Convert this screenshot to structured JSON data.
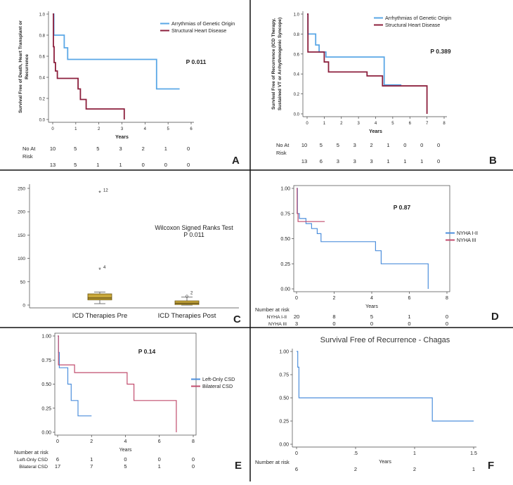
{
  "chart_data": [
    {
      "panel": "A",
      "type": "line",
      "step": true,
      "title": "",
      "xlabel": "Years",
      "ylabel_lines": [
        "Survival Free of Death, Heart Transplant or",
        "Recurrence"
      ],
      "xlim": [
        0,
        6
      ],
      "ylim": [
        0,
        1
      ],
      "xticks": [
        "0",
        "1",
        "2",
        "3",
        "4",
        "5",
        "6"
      ],
      "yticks": [
        "0.0",
        "0.2",
        "0.4",
        "0.6",
        "0.8",
        "1.0"
      ],
      "pvalue": "P 0.011",
      "legend": [
        "Arrythmias of Genetic Origin",
        "Structural Heart Disease"
      ],
      "colors": [
        "#5aa7e6",
        "#8c1f3c"
      ],
      "series": [
        {
          "name": "Arrythmias of Genetic Origin",
          "x": [
            0,
            0.05,
            0.05,
            0.5,
            0.5,
            0.65,
            0.65,
            4.5,
            4.5,
            5.5
          ],
          "y": [
            1,
            1,
            0.8,
            0.8,
            0.68,
            0.68,
            0.57,
            0.57,
            0.29,
            0.29
          ]
        },
        {
          "name": "Structural Heart Disease",
          "x": [
            0,
            0.03,
            0.03,
            0.06,
            0.06,
            0.12,
            0.12,
            0.2,
            0.2,
            0.4,
            0.4,
            1.1,
            1.1,
            1.2,
            1.2,
            1.45,
            1.45,
            3.1,
            3.1
          ],
          "y": [
            1,
            1,
            0.69,
            0.69,
            0.54,
            0.54,
            0.46,
            0.46,
            0.39,
            0.39,
            0.39,
            0.39,
            0.29,
            0.29,
            0.19,
            0.19,
            0.1,
            0.1,
            0.0
          ]
        }
      ],
      "risk_label": [
        "No At",
        "Risk"
      ],
      "risk_rows": [
        {
          "label": "",
          "values": [
            "10",
            "5",
            "5",
            "3",
            "2",
            "1",
            "0"
          ]
        },
        {
          "label": "",
          "values": [
            "13",
            "5",
            "1",
            "1",
            "0",
            "0",
            "0"
          ]
        }
      ]
    },
    {
      "panel": "B",
      "type": "line",
      "step": true,
      "title": "",
      "xlabel": "Years",
      "ylabel_lines": [
        "Survival Free of Recurrence (ICD Therapy,",
        "Sustained VT or Arrhythmogenic Syncope)"
      ],
      "xlim": [
        0,
        8
      ],
      "ylim": [
        0,
        1
      ],
      "xticks": [
        "0",
        "1",
        "2",
        "3",
        "4",
        "5",
        "6",
        "7",
        "8"
      ],
      "yticks": [
        "0.0",
        "0.2",
        "0.4",
        "0.6",
        "0.8",
        "1.0"
      ],
      "pvalue": "P 0.389",
      "legend": [
        "Arrhythmias of Genetic Origin",
        "Structural Heart Disease"
      ],
      "colors": [
        "#5aa7e6",
        "#8c1f3c"
      ],
      "series": [
        {
          "name": "Arrhythmias of Genetic Origin",
          "x": [
            0,
            0.05,
            0.05,
            0.5,
            0.5,
            0.7,
            0.7,
            1.1,
            1.1,
            4.5,
            4.5,
            5.5
          ],
          "y": [
            1,
            1,
            0.8,
            0.8,
            0.69,
            0.69,
            0.62,
            0.62,
            0.57,
            0.57,
            0.29,
            0.29
          ]
        },
        {
          "name": "Structural Heart Disease",
          "x": [
            0,
            0.05,
            0.05,
            1.0,
            1.0,
            1.25,
            1.25,
            3.5,
            3.5,
            4.4,
            4.4,
            7.0,
            7.0
          ],
          "y": [
            1,
            1,
            0.62,
            0.62,
            0.52,
            0.52,
            0.42,
            0.42,
            0.38,
            0.38,
            0.28,
            0.28,
            0.0
          ]
        }
      ],
      "risk_label": [
        "No At",
        "Risk"
      ],
      "risk_rows": [
        {
          "label": "",
          "values": [
            "10",
            "5",
            "5",
            "3",
            "2",
            "1",
            "0",
            "0",
            "0"
          ]
        },
        {
          "label": "",
          "values": [
            "13",
            "6",
            "3",
            "3",
            "3",
            "1",
            "1",
            "1",
            "0"
          ]
        }
      ]
    },
    {
      "panel": "C",
      "type": "box",
      "title": "Wilcoxon Signed Ranks Test",
      "pvalue": "P 0.011",
      "ylim": [
        0,
        260
      ],
      "yticks": [
        "0",
        "50",
        "100",
        "150",
        "200",
        "250"
      ],
      "categories": [
        "ICD Therapies Pre",
        "ICD Therapies Post"
      ],
      "boxes": [
        {
          "whisker_low": 3,
          "q1": 11,
          "median": 15,
          "q3": 24,
          "whisker_high": 28
        },
        {
          "whisker_low": 0,
          "q1": 1,
          "median": 4,
          "q3": 9,
          "whisker_high": 17
        }
      ],
      "outliers": [
        {
          "box": 0,
          "value": 240,
          "label": "12",
          "marker": "*"
        },
        {
          "box": 0,
          "value": 75,
          "label": "4",
          "marker": "*"
        },
        {
          "box": 1,
          "value": 20,
          "label": "2",
          "marker": "o"
        }
      ]
    },
    {
      "panel": "D",
      "type": "line",
      "step": true,
      "title": "",
      "xlabel": "Years",
      "xlim": [
        0,
        8
      ],
      "ylim": [
        0,
        1
      ],
      "xticks": [
        "0",
        "2",
        "4",
        "6",
        "8"
      ],
      "yticks": [
        "0.00",
        "0.25",
        "0.50",
        "0.75",
        "1.00"
      ],
      "pvalue": "P 0.87",
      "legend": [
        "NYHA I-II",
        "NYHA III"
      ],
      "colors": [
        "#4d8fdc",
        "#c24d6e"
      ],
      "series": [
        {
          "name": "NYHA I-II",
          "x": [
            0,
            0.05,
            0.05,
            0.15,
            0.15,
            0.5,
            0.5,
            0.8,
            0.8,
            1.1,
            1.1,
            1.3,
            1.3,
            4.2,
            4.2,
            4.5,
            4.5,
            7.0,
            7.0
          ],
          "y": [
            1,
            1,
            0.75,
            0.75,
            0.7,
            0.7,
            0.65,
            0.65,
            0.6,
            0.6,
            0.55,
            0.55,
            0.47,
            0.47,
            0.38,
            0.38,
            0.25,
            0.25,
            0.0
          ]
        },
        {
          "name": "NYHA III",
          "x": [
            0,
            0.03,
            0.03,
            0.08,
            0.08,
            1.5
          ],
          "y": [
            1,
            1,
            0.75,
            0.75,
            0.67,
            0.67
          ]
        }
      ],
      "risk_title": "Number at risk",
      "risk_rows": [
        {
          "label": "NYHA I-II",
          "values": [
            "20",
            "8",
            "5",
            "1",
            "0"
          ]
        },
        {
          "label": "NYHA III",
          "values": [
            "3",
            "0",
            "0",
            "0",
            "0"
          ]
        }
      ]
    },
    {
      "panel": "E",
      "type": "line",
      "step": true,
      "title": "",
      "xlabel": "Years",
      "xlim": [
        0,
        8
      ],
      "ylim": [
        0,
        1
      ],
      "xticks": [
        "0",
        "2",
        "4",
        "6",
        "8"
      ],
      "yticks": [
        "0.00",
        "0.25",
        "0.50",
        "0.75",
        "1.00"
      ],
      "pvalue": "P 0.14",
      "legend": [
        "Left-Only CSD",
        "Bilateral CSD"
      ],
      "colors": [
        "#4d8fdc",
        "#c24d6e"
      ],
      "series": [
        {
          "name": "Left-Only CSD",
          "x": [
            0,
            0.05,
            0.05,
            0.1,
            0.1,
            0.6,
            0.6,
            0.8,
            0.8,
            1.2,
            1.2,
            2.0
          ],
          "y": [
            1,
            1,
            0.83,
            0.83,
            0.67,
            0.67,
            0.5,
            0.5,
            0.33,
            0.33,
            0.17,
            0.17
          ]
        },
        {
          "name": "Bilateral CSD",
          "x": [
            0,
            0.05,
            0.05,
            1.0,
            1.0,
            4.1,
            4.1,
            4.5,
            4.5,
            7.0,
            7.0
          ],
          "y": [
            1,
            1,
            0.7,
            0.7,
            0.62,
            0.62,
            0.5,
            0.5,
            0.33,
            0.33,
            0.0
          ]
        }
      ],
      "risk_title": "Number at risk",
      "risk_rows": [
        {
          "label": "Left-Only CSD",
          "values": [
            "6",
            "1",
            "0",
            "0",
            "0"
          ]
        },
        {
          "label": "Bilateral CSD",
          "values": [
            "17",
            "7",
            "5",
            "1",
            "0"
          ]
        }
      ]
    },
    {
      "panel": "F",
      "type": "line",
      "step": true,
      "title": "Survival Free of Recurrence - Chagas",
      "xlabel": "Years",
      "xlim": [
        0,
        1.5
      ],
      "ylim": [
        0,
        1
      ],
      "xticks": [
        "0",
        ".5",
        "1",
        "1.5"
      ],
      "yticks": [
        "0.00",
        "0.25",
        "0.50",
        "0.75",
        "1.00"
      ],
      "pvalue": "",
      "legend": [],
      "colors": [
        "#4d8fdc"
      ],
      "series": [
        {
          "name": "Chagas",
          "x": [
            0,
            0.01,
            0.01,
            0.02,
            0.02,
            1.15,
            1.15,
            1.5
          ],
          "y": [
            1,
            1,
            0.83,
            0.83,
            0.5,
            0.5,
            0.25,
            0.25
          ]
        }
      ],
      "risk_title": "Number at risk",
      "risk_rows": [
        {
          "label": "",
          "values": [
            "6",
            "2",
            "2",
            "1"
          ]
        }
      ]
    }
  ]
}
